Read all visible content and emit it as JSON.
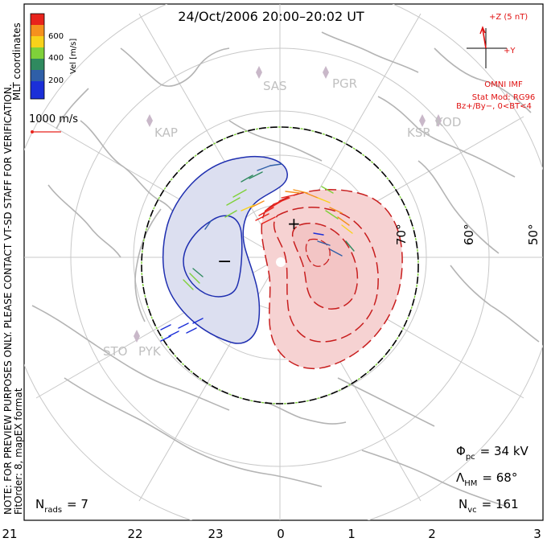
{
  "title": "24/Oct/2006  20:00–20:02  UT",
  "coordinates_label": "MLT coordinates",
  "notice_line1": "NOTE: FOR PREVIEW PURPOSES ONLY. PLEASE CONTACT VT-SD STAFF FOR VERIFICATION.",
  "notice_line2": "FitOrder: 8, mapEX format",
  "velocity_scale": {
    "axis_label": "Vel [m/s]",
    "ticks": [
      "600",
      "400",
      "200"
    ],
    "colors": [
      "#e8231c",
      "#f5911e",
      "#f8d21a",
      "#7fd13a",
      "#2f8a5f",
      "#2f5fa8",
      "#1b2fd8"
    ]
  },
  "reference_vector_label": "1000 m/s",
  "imf": {
    "z_label": "+Z (5 nT)",
    "y_label": "+Y",
    "source": "OMNI IMF",
    "model": "Stat Mod: RG96",
    "condition": "Bz+/By−, 0<BT<4"
  },
  "stations": [
    "SAS",
    "PGR",
    "KAP",
    "KSR",
    "KOD",
    "STO",
    "PYK"
  ],
  "latitude_labels": [
    "70°",
    "60°",
    "50°"
  ],
  "mlt_labels": [
    "21",
    "22",
    "23",
    "0",
    "1",
    "2",
    "3"
  ],
  "max_symbol": "+",
  "min_symbol": "−",
  "stats": {
    "phi_pc_label": "Φ",
    "phi_pc_sub": "pc",
    "phi_pc_value": "=  34 kV",
    "lambda_hm_label": "Λ",
    "lambda_hm_sub": "HM",
    "lambda_hm_value": "=  68°",
    "nvc_label": "N",
    "nvc_sub": "vc",
    "nvc_value": "=  161",
    "nrads_label": "N",
    "nrads_sub": "rads",
    "nrads_value": "=  7"
  },
  "colors": {
    "negative_cell": "#dcdff0",
    "positive_cell": "#f6d2d2",
    "negative_contour": "#1f2fb0",
    "positive_contour": "#c81e1e",
    "imf_text": "#e01010",
    "grid": "#c8c8c8",
    "coast": "#b4b4b4",
    "station": "#c9b8c9"
  }
}
